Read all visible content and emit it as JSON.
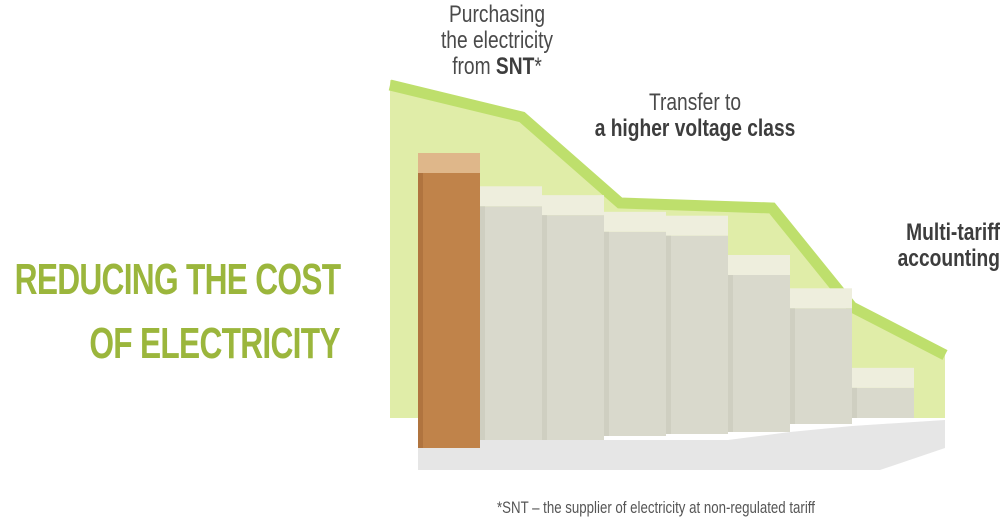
{
  "title": {
    "line1": "REDUCING THE COST",
    "line2": "OF ELECTRICITY"
  },
  "steps": {
    "snt": {
      "line1": "Purchasing",
      "line2": "the electricity",
      "line3_prefix": "from ",
      "line3_bold": "SNT",
      "line3_suffix": "*"
    },
    "voltage": {
      "line1": "Transfer to",
      "line2": "a higher voltage class"
    },
    "multi": {
      "line1": "Multi-tariff",
      "line2": "accounting"
    }
  },
  "footnote": "*SNT – the supplier of electricity at non-regulated tariff",
  "colors": {
    "title_green": "#9bb63c",
    "band_fill": "#e0eda8",
    "band_edge": "#bedf6c",
    "first_column": "#c0834a",
    "first_column_cap": "#dfb78a",
    "columns": "#d9d9cc",
    "column_caps": "#eeeedd",
    "shadow": "#e6e6e6"
  },
  "columns": {
    "relative_heights": [
      1.0,
      0.86,
      0.83,
      0.76,
      0.74,
      0.6,
      0.46,
      0.17
    ],
    "highlighted_index": 0
  }
}
